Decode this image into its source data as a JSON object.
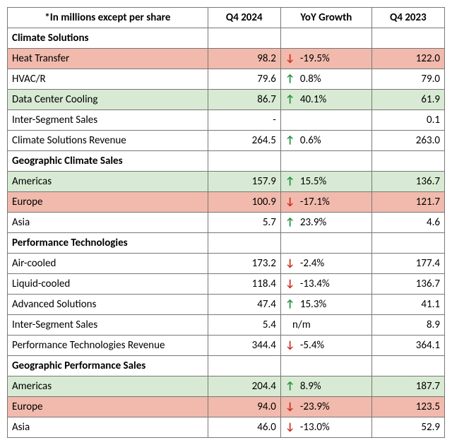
{
  "columns": {
    "label": "*In millions except per share",
    "q4_2024": "Q4 2024",
    "yoy": "YoY Growth",
    "q4_2023": "Q4 2023"
  },
  "rows": [
    {
      "type": "section",
      "label": "Climate Solutions"
    },
    {
      "type": "data",
      "highlight": "red",
      "label": "Heat Transfer",
      "q4_2024": "98.2",
      "yoy_dir": "down",
      "yoy": "-19.5%",
      "q4_2023": "122.0"
    },
    {
      "type": "data",
      "highlight": "none",
      "label": "HVAC/R",
      "q4_2024": "79.6",
      "yoy_dir": "up",
      "yoy": "0.8%",
      "q4_2023": "79.0"
    },
    {
      "type": "data",
      "highlight": "green",
      "label": "Data Center Cooling",
      "q4_2024": "86.7",
      "yoy_dir": "up",
      "yoy": "40.1%",
      "q4_2023": "61.9"
    },
    {
      "type": "data",
      "highlight": "none",
      "label": "Inter-Segment Sales",
      "q4_2024": "-",
      "yoy_dir": "",
      "yoy": "",
      "q4_2023": "0.1"
    },
    {
      "type": "data",
      "highlight": "none",
      "label": "Climate Solutions Revenue",
      "q4_2024": "264.5",
      "yoy_dir": "up",
      "yoy": "0.6%",
      "q4_2023": "263.0"
    },
    {
      "type": "section",
      "label": "Geographic Climate Sales"
    },
    {
      "type": "data",
      "highlight": "green",
      "label": "Americas",
      "q4_2024": "157.9",
      "yoy_dir": "up",
      "yoy": "15.5%",
      "q4_2023": "136.7"
    },
    {
      "type": "data",
      "highlight": "red",
      "label": "Europe",
      "q4_2024": "100.9",
      "yoy_dir": "down",
      "yoy": "-17.1%",
      "q4_2023": "121.7"
    },
    {
      "type": "data",
      "highlight": "none",
      "label": "Asia",
      "q4_2024": "5.7",
      "yoy_dir": "up",
      "yoy": "23.9%",
      "q4_2023": "4.6"
    },
    {
      "type": "section",
      "label": "Performance Technologies"
    },
    {
      "type": "data",
      "highlight": "none",
      "label": "Air-cooled",
      "q4_2024": "173.2",
      "yoy_dir": "down",
      "yoy": "-2.4%",
      "q4_2023": "177.4"
    },
    {
      "type": "data",
      "highlight": "none",
      "label": "Liquid-cooled",
      "q4_2024": "118.4",
      "yoy_dir": "down",
      "yoy": "-13.4%",
      "q4_2023": "136.7"
    },
    {
      "type": "data",
      "highlight": "none",
      "label": "Advanced Solutions",
      "q4_2024": "47.4",
      "yoy_dir": "up",
      "yoy": "15.3%",
      "q4_2023": "41.1"
    },
    {
      "type": "data",
      "highlight": "none",
      "label": "Inter-Segment Sales",
      "q4_2024": "5.4",
      "yoy_dir": "",
      "yoy": "n/m",
      "q4_2023": "8.9"
    },
    {
      "type": "data",
      "highlight": "none",
      "label": "Performance Technologies Revenue",
      "q4_2024": "344.4",
      "yoy_dir": "down",
      "yoy": "-5.4%",
      "q4_2023": "364.1"
    },
    {
      "type": "section",
      "label": "Geographic Performance Sales"
    },
    {
      "type": "data",
      "highlight": "green",
      "label": "Americas",
      "q4_2024": "204.4",
      "yoy_dir": "up",
      "yoy": "8.9%",
      "q4_2023": "187.7"
    },
    {
      "type": "data",
      "highlight": "red",
      "label": "Europe",
      "q4_2024": "94.0",
      "yoy_dir": "down",
      "yoy": "-23.9%",
      "q4_2023": "123.5"
    },
    {
      "type": "data",
      "highlight": "none",
      "label": "Asia",
      "q4_2024": "46.0",
      "yoy_dir": "down",
      "yoy": "-13.0%",
      "q4_2023": "52.9"
    }
  ],
  "style": {
    "highlight_green": "#d8ead3",
    "highlight_red": "#f1baad",
    "arrow_up_color": "#1f8f3b",
    "arrow_down_color": "#cc2a1d",
    "arrow_up_glyph": "↑",
    "arrow_down_glyph": "↓",
    "border_color": "#777777",
    "font_size_pt": 11
  }
}
